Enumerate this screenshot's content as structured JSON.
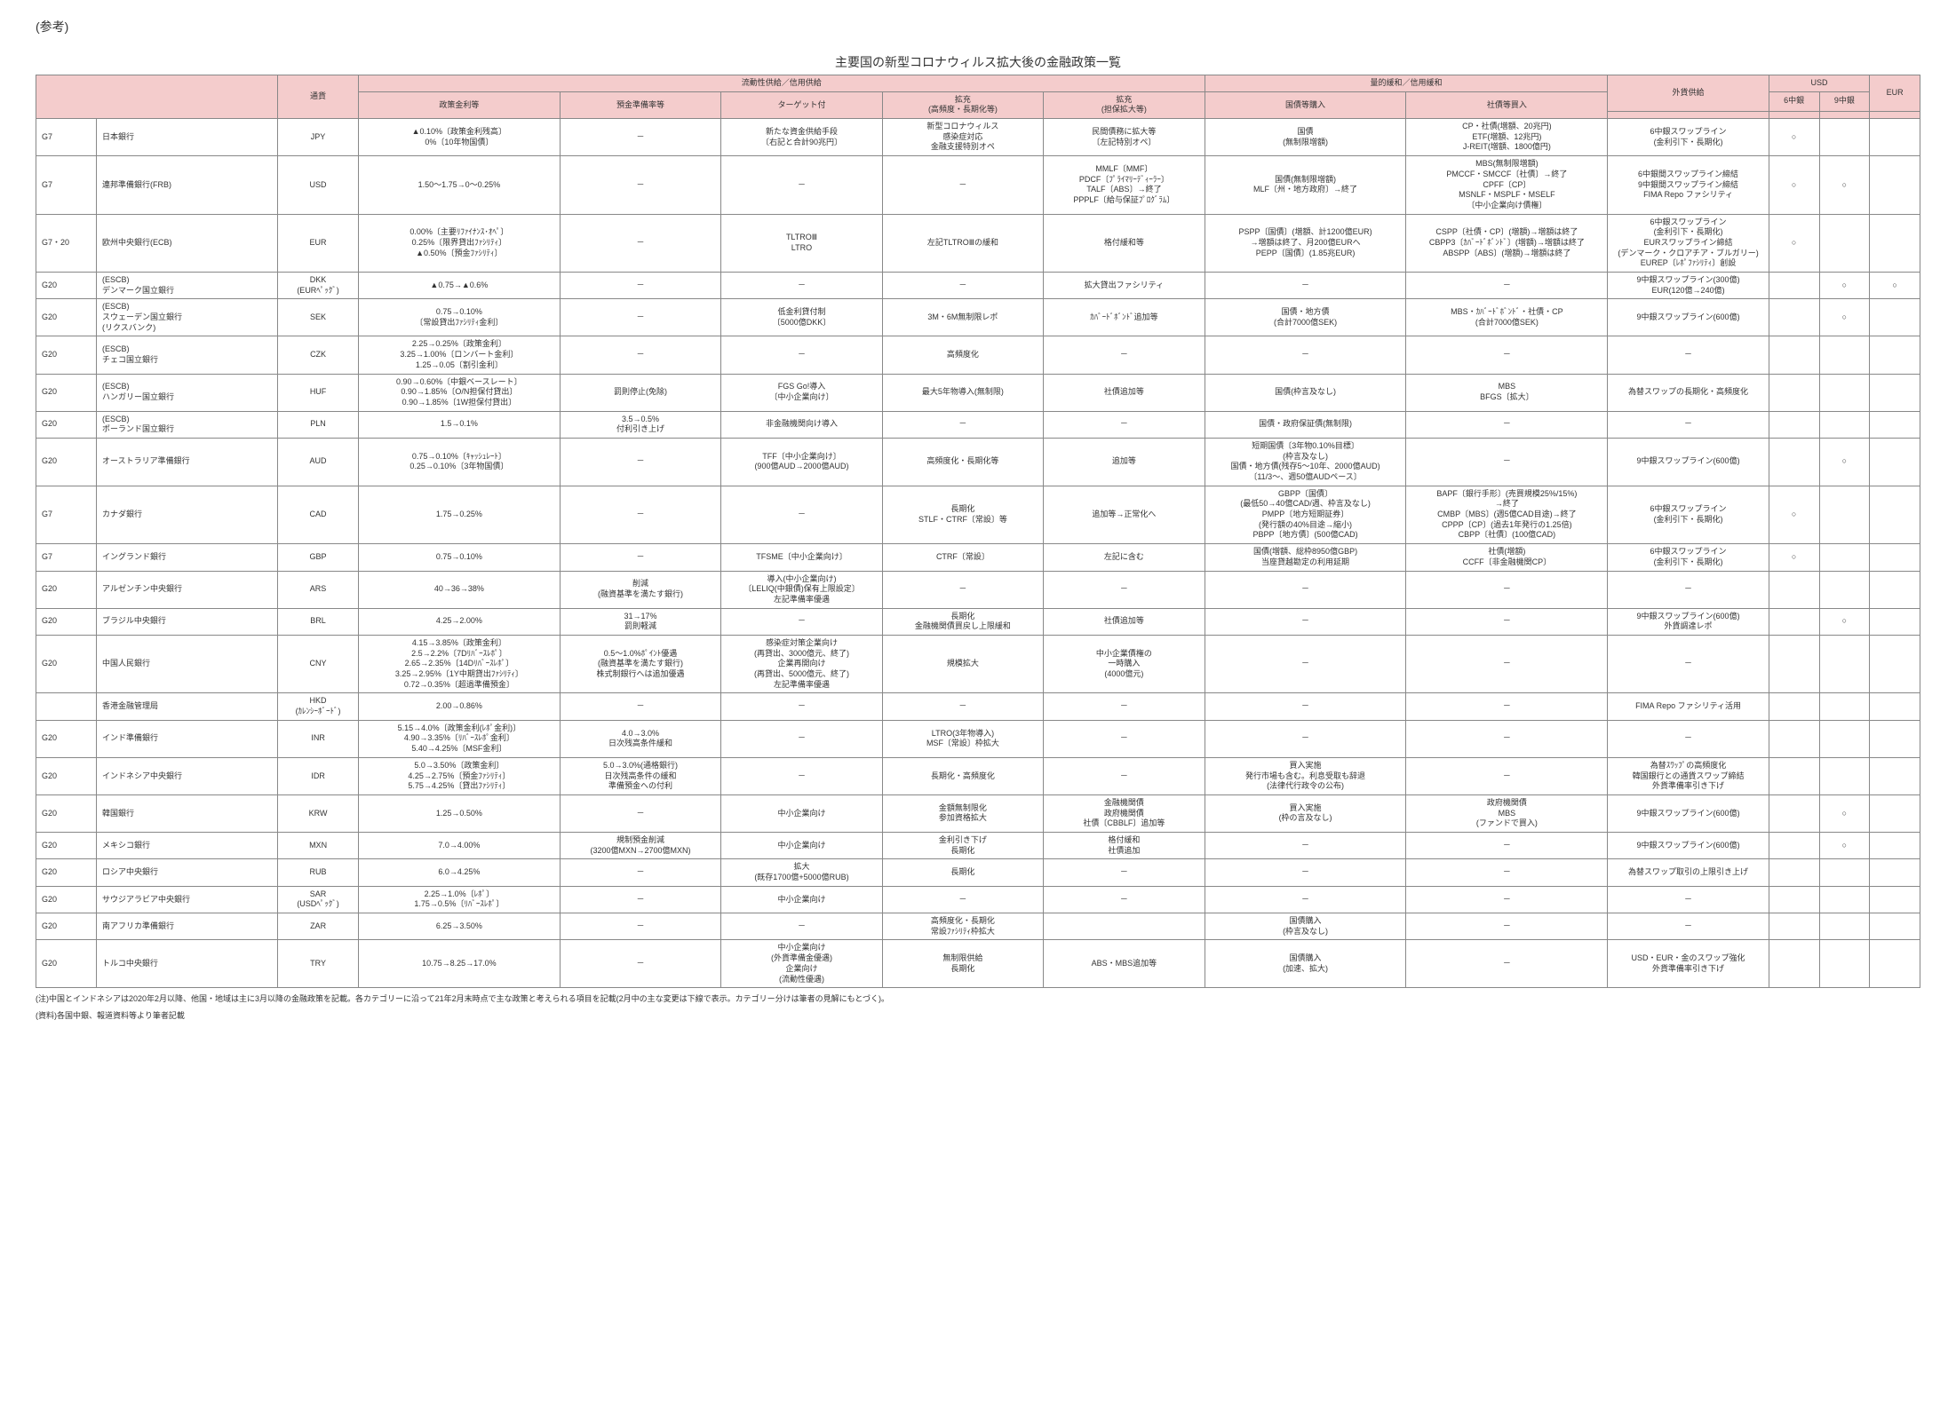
{
  "ref": "(参考)",
  "title": "主要国の新型コロナウィルス拡大後の金融政策一覧",
  "headers": {
    "liquidity": "流動性供給／信用供給",
    "qe": "量的緩和／信用緩和",
    "fx": "外貨供給",
    "ccy": "通貨",
    "rate": "政策金利等",
    "reserve": "預金準備率等",
    "target": "ターゲット付",
    "ext1": "拡充\n(高頻度・長期化等)",
    "ext2": "拡充\n(担保拡大等)",
    "gov": "国債等購入",
    "corp": "社債等買入",
    "usd": "USD",
    "eur": "EUR",
    "usd_6": "6中銀",
    "usd_9": "9中銀"
  },
  "rows": [
    {
      "g": "G7",
      "bank": "日本銀行",
      "ccy": "JPY",
      "rate": "▲0.10%〔政策金利残高〕\n0%〔10年物国債〕",
      "reserve": "－",
      "target": "新たな資金供給手段\n〔右記と合計90兆円〕",
      "ext1": "新型コロナウィルス\n感染症対応\n金融支援特別オペ",
      "ext2": "民間債務に拡大等\n〔左記特別オペ〕",
      "gov": "国債\n(無制限増額)",
      "corp": "CP・社債(増額、20兆円)\nETF(増額、12兆円)\nJ-REIT(増額、1800億円)",
      "fx": "6中銀スワップライン\n(金利引下・長期化)",
      "u6": "○",
      "u9": "",
      "eur": ""
    },
    {
      "g": "G7",
      "bank": "連邦準備銀行(FRB)",
      "ccy": "USD",
      "rate": "1.50～1.75→0～0.25%",
      "reserve": "－",
      "target": "－",
      "ext1": "－",
      "ext2": "MMLF〔MMF〕\nPDCF〔ﾌﾟﾗｲﾏﾘｰﾃﾞｨｰﾗｰ〕\nTALF〔ABS〕→終了\nPPPLF〔給与保証ﾌﾟﾛｸﾞﾗﾑ〕",
      "gov": "国債(無制限増額)\nMLF〔州・地方政府〕→終了",
      "corp": "MBS(無制限増額)\nPMCCF・SMCCF〔社債〕→終了\nCPFF〔CP〕\nMSNLF・MSPLF・MSELF\n〔中小企業向け債権〕",
      "fx": "6中銀間スワップライン締結\n9中銀間スワップライン締結\nFIMA Repo ファシリティ",
      "u6": "○",
      "u9": "○",
      "eur": ""
    },
    {
      "g": "G7・20",
      "bank": "欧州中央銀行(ECB)",
      "ccy": "EUR",
      "rate": "0.00%〔主要ﾘﾌｧｲﾅﾝｽ･ｵﾍﾟ〕\n0.25%〔限界貸出ﾌｧｼﾘﾃｨ〕\n▲0.50%〔預金ﾌｧｼﾘﾃｨ〕",
      "reserve": "－",
      "target": "TLTROⅢ\nLTRO",
      "ext1": "左記TLTROⅢの緩和",
      "ext2": "格付緩和等",
      "gov": "PSPP〔国債〕(増額、計1200億EUR)\n→増額は終了、月200億EURへ\nPEPP〔国債〕(1.85兆EUR)",
      "corp": "CSPP〔社債・CP〕(増額)→増額は終了\nCBPP3〔ｶﾊﾞｰﾄﾞﾎﾞﾝﾄﾞ〕(増額)→増額は終了\nABSPP〔ABS〕(増額)→増額は終了",
      "fx": "6中銀スワップライン\n(金利引下・長期化)\nEURスワップライン締結\n(デンマーク・クロアチア・ブルガリー)\nEUREP〔ﾚﾎﾟﾌｧｼﾘﾃｨ〕創設",
      "u6": "○",
      "u9": "",
      "eur": ""
    },
    {
      "g": "G20",
      "bank": "(ESCB)\nデンマーク国立銀行",
      "ccy": "DKK\n(EURﾍﾟｯｸﾞ)",
      "rate": "▲0.75→▲0.6%",
      "reserve": "－",
      "target": "－",
      "ext1": "－",
      "ext2": "拡大貸出ファシリティ",
      "gov": "－",
      "corp": "－",
      "fx": "9中銀スワップライン(300億)\nEUR(120億→240億)",
      "u6": "",
      "u9": "○",
      "eur": "○"
    },
    {
      "g": "G20",
      "bank": "(ESCB)\nスウェーデン国立銀行\n(リクスバンク)",
      "ccy": "SEK",
      "rate": "0.75→0.10%\n〔常設貸出ﾌｧｼﾘﾃｨ金利〕",
      "reserve": "－",
      "target": "低金利貸付制\n〔5000億DKK〕",
      "ext1": "3M・6M無制限レポ",
      "ext2": "ｶﾊﾞｰﾄﾞﾎﾞﾝﾄﾞ追加等",
      "gov": "国債・地方債\n(合計7000億SEK)",
      "corp": "MBS・ｶﾊﾞｰﾄﾞﾎﾞﾝﾄﾞ・社債・CP\n(合計7000億SEK)",
      "fx": "9中銀スワップライン(600億)",
      "u6": "",
      "u9": "○",
      "eur": ""
    },
    {
      "g": "G20",
      "bank": "(ESCB)\nチェコ国立銀行",
      "ccy": "CZK",
      "rate": "2.25→0.25%〔政策金利〕\n3.25→1.00%〔ロンバート金利〕\n1.25→0.05〔割引金利〕",
      "reserve": "－",
      "target": "－",
      "ext1": "高頻度化",
      "ext2": "－",
      "gov": "－",
      "corp": "－",
      "fx": "－",
      "u6": "",
      "u9": "",
      "eur": ""
    },
    {
      "g": "G20",
      "bank": "(ESCB)\nハンガリー国立銀行",
      "ccy": "HUF",
      "rate": "0.90→0.60%〔中銀ベースレート〕\n0.90→1.85%〔O/N担保付貸出〕\n0.90→1.85%〔1W担保付貸出〕",
      "reserve": "罰則停止(免除)",
      "target": "FGS Go!導入\n〔中小企業向け〕",
      "ext1": "最大5年物導入(無制限)",
      "ext2": "社債追加等",
      "gov": "国債(枠言及なし)",
      "corp": "MBS\nBFGS〔拡大〕",
      "fx": "為替スワップの長期化・高頻度化",
      "u6": "",
      "u9": "",
      "eur": ""
    },
    {
      "g": "G20",
      "bank": "(ESCB)\nポーランド国立銀行",
      "ccy": "PLN",
      "rate": "1.5→0.1%",
      "reserve": "3.5→0.5%\n付利引き上げ",
      "target": "非金融機関向け導入",
      "ext1": "－",
      "ext2": "－",
      "gov": "国債・政府保証債(無制限)",
      "corp": "－",
      "fx": "－",
      "u6": "",
      "u9": "",
      "eur": ""
    },
    {
      "g": "G20",
      "bank": "オーストラリア準備銀行",
      "ccy": "AUD",
      "rate": "0.75→0.10%〔ｷｬｯｼｭﾚｰﾄ〕\n0.25→0.10%〔3年物国債〕",
      "reserve": "－",
      "target": "TFF〔中小企業向け〕\n(900億AUD→2000億AUD)",
      "ext1": "高頻度化・長期化等",
      "ext2": "追加等",
      "gov": "短期国債〔3年物0.10%目標〕\n(枠言及なし)\n国債・地方債(残存5～10年、2000億AUD)\n〔11/3～、週50億AUDペース〕",
      "corp": "－",
      "fx": "9中銀スワップライン(600億)",
      "u6": "",
      "u9": "○",
      "eur": ""
    },
    {
      "g": "G7",
      "bank": "カナダ銀行",
      "ccy": "CAD",
      "rate": "1.75→0.25%",
      "reserve": "－",
      "target": "－",
      "ext1": "長期化\nSTLF・CTRF〔常設〕等",
      "ext2": "追加等→正常化へ",
      "gov": "GBPP〔国債〕\n(最低50→40億CAD/週、枠言及なし)\nPMPP〔地方短期証券〕\n(発行額の40%目途→縮小)\nPBPP〔地方債〕(500億CAD)",
      "corp": "BAPF〔銀行手形〕(売買規模25%/15%)\n→終了\nCMBP〔MBS〕(週5億CAD目途)→終了\nCPPP〔CP〕(過去1年発行の1.25倍)\nCBPP〔社債〕(100億CAD)",
      "fx": "6中銀スワップライン\n(金利引下・長期化)",
      "u6": "○",
      "u9": "",
      "eur": ""
    },
    {
      "g": "G7",
      "bank": "イングランド銀行",
      "ccy": "GBP",
      "rate": "0.75→0.10%",
      "reserve": "－",
      "target": "TFSME〔中小企業向け〕",
      "ext1": "CTRF〔常設〕",
      "ext2": "左記に含む",
      "gov": "国債(増額、総枠8950億GBP)\n当座貸越勘定の利用延期",
      "corp": "社債(増額)\nCCFF〔非金融機関CP〕",
      "fx": "6中銀スワップライン\n(金利引下・長期化)",
      "u6": "○",
      "u9": "",
      "eur": ""
    },
    {
      "g": "G20",
      "bank": "アルゼンチン中央銀行",
      "ccy": "ARS",
      "rate": "40→36→38%",
      "reserve": "削減\n(融資基準を満たす銀行)",
      "target": "導入(中小企業向け)\n〔LELIQ(中銀債)保有上限設定〕\n左記準備率優遇",
      "ext1": "－",
      "ext2": "－",
      "gov": "－",
      "corp": "－",
      "fx": "－",
      "u6": "",
      "u9": "",
      "eur": ""
    },
    {
      "g": "G20",
      "bank": "ブラジル中央銀行",
      "ccy": "BRL",
      "rate": "4.25→2.00%",
      "reserve": "31→17%\n罰則軽減",
      "target": "－",
      "ext1": "長期化\n金融機関債買戻し上限緩和",
      "ext2": "社債追加等",
      "gov": "－",
      "corp": "－",
      "fx": "9中銀スワップライン(600億)\n外貨調達レポ",
      "u6": "",
      "u9": "○",
      "eur": ""
    },
    {
      "g": "G20",
      "bank": "中国人民銀行",
      "ccy": "CNY",
      "rate": "4.15→3.85%〔政策金利〕\n2.5→2.2%〔7Dﾘﾊﾞｰｽﾚﾎﾟ〕\n2.65→2.35%〔14Dﾘﾊﾞｰｽﾚﾎﾟ〕\n3.25→2.95%〔1Y中期貸出ﾌｧｼﾘﾃｨ〕\n0.72→0.35%〔超過準備預金〕",
      "reserve": "0.5～1.0%ﾎﾟｲﾝﾄ優遇\n(融資基準を満たす銀行)\n株式制銀行へは追加優遇",
      "target": "感染症対策企業向け\n(再貸出、3000億元、終了)\n企業再開向け\n(再貸出、5000億元、終了)\n左記準備率優遇",
      "ext1": "規模拡大",
      "ext2": "中小企業債権の\n一時購入\n(4000億元)",
      "gov": "－",
      "corp": "－",
      "fx": "－",
      "u6": "",
      "u9": "",
      "eur": ""
    },
    {
      "g": "",
      "bank": "香港金融管理局",
      "ccy": "HKD\n(ｶﾚﾝｼｰﾎﾞｰﾄﾞ)",
      "rate": "2.00→0.86%",
      "reserve": "－",
      "target": "－",
      "ext1": "－",
      "ext2": "－",
      "gov": "－",
      "corp": "－",
      "fx": "FIMA Repo ファシリティ活用",
      "u6": "",
      "u9": "",
      "eur": ""
    },
    {
      "g": "G20",
      "bank": "インド準備銀行",
      "ccy": "INR",
      "rate": "5.15→4.0%〔政策金利(ﾚﾎﾟ金利)〕\n4.90→3.35%〔ﾘﾊﾞｰｽﾚﾎﾟ金利〕\n5.40→4.25%〔MSF金利〕",
      "reserve": "4.0→3.0%\n日次残高条件緩和",
      "target": "－",
      "ext1": "LTRO(3年物導入)\nMSF〔常設〕枠拡大",
      "ext2": "－",
      "gov": "－",
      "corp": "－",
      "fx": "－",
      "u6": "",
      "u9": "",
      "eur": ""
    },
    {
      "g": "G20",
      "bank": "インドネシア中央銀行",
      "ccy": "IDR",
      "rate": "5.0→3.50%〔政策金利〕\n4.25→2.75%〔預金ﾌｧｼﾘﾃｨ〕\n5.75→4.25%〔貸出ﾌｧｼﾘﾃｨ〕",
      "reserve": "5.0→3.0%(通格銀行)\n日次残高条件の緩和\n準備預金への付利",
      "target": "－",
      "ext1": "長期化・高頻度化",
      "ext2": "－",
      "gov": "買入実施\n発行市場も含む。利息受取も辞退\n(法律代行政令の公布)",
      "corp": "－",
      "fx": "為替ｽﾜｯﾌﾟの高頻度化\n韓国銀行との通貨スワップ締結\n外貨準備率引き下げ",
      "u6": "",
      "u9": "",
      "eur": ""
    },
    {
      "g": "G20",
      "bank": "韓国銀行",
      "ccy": "KRW",
      "rate": "1.25→0.50%",
      "reserve": "－",
      "target": "中小企業向け",
      "ext1": "金額無制限化\n参加資格拡大",
      "ext2": "金融機関債\n政府機関債\n社債〔CBBLF〕追加等",
      "gov": "買入実施\n(枠の言及なし)",
      "corp": "政府機関債\nMBS\n(ファンドで買入)",
      "fx": "9中銀スワップライン(600億)",
      "u6": "",
      "u9": "○",
      "eur": ""
    },
    {
      "g": "G20",
      "bank": "メキシコ銀行",
      "ccy": "MXN",
      "rate": "7.0→4.00%",
      "reserve": "規制預金削減\n(3200億MXN→2700億MXN)",
      "target": "中小企業向け",
      "ext1": "金利引き下げ\n長期化",
      "ext2": "格付緩和\n社債追加",
      "gov": "－",
      "corp": "－",
      "fx": "9中銀スワップライン(600億)",
      "u6": "",
      "u9": "○",
      "eur": ""
    },
    {
      "g": "G20",
      "bank": "ロシア中央銀行",
      "ccy": "RUB",
      "rate": "6.0→4.25%",
      "reserve": "－",
      "target": "拡大\n(既存1700億+5000億RUB)",
      "ext1": "長期化",
      "ext2": "－",
      "gov": "－",
      "corp": "－",
      "fx": "為替スワップ取引の上限引き上げ",
      "u6": "",
      "u9": "",
      "eur": ""
    },
    {
      "g": "G20",
      "bank": "サウジアラビア中央銀行",
      "ccy": "SAR\n(USDﾍﾟｯｸﾞ)",
      "rate": "2.25→1.0%〔ﾚﾎﾟ〕\n1.75→0.5%〔ﾘﾊﾞｰｽﾚﾎﾟ〕",
      "reserve": "－",
      "target": "中小企業向け",
      "ext1": "－",
      "ext2": "－",
      "gov": "－",
      "corp": "－",
      "fx": "－",
      "u6": "",
      "u9": "",
      "eur": ""
    },
    {
      "g": "G20",
      "bank": "南アフリカ準備銀行",
      "ccy": "ZAR",
      "rate": "6.25→3.50%",
      "reserve": "－",
      "target": "－",
      "ext1": "高頻度化・長期化\n常設ﾌｧｼﾘﾃｨ枠拡大",
      "ext2": "",
      "gov": "国債購入\n(枠言及なし)",
      "corp": "－",
      "fx": "－",
      "u6": "",
      "u9": "",
      "eur": ""
    },
    {
      "g": "G20",
      "bank": "トルコ中央銀行",
      "ccy": "TRY",
      "rate": "10.75→8.25→17.0%",
      "reserve": "－",
      "target": "中小企業向け\n(外貨準備金優遇)\n企業向け\n(流動性優遇)",
      "ext1": "無制限供給\n長期化",
      "ext2": "ABS・MBS追加等",
      "gov": "国債購入\n(加速、拡大)",
      "corp": "－",
      "fx": "USD・EUR・金のスワップ強化\n外貨準備率引き下げ",
      "u6": "",
      "u9": "",
      "eur": ""
    }
  ],
  "notes": [
    "(注)中国とインドネシアは2020年2月以降、他国・地域は主に3月以降の金融政策を記載。各カテゴリーに沿って21年2月末時点で主な政策と考えられる項目を記載(2月中の主な変更は下線で表示。カテゴリー分けは筆者の見解にもとづく)。",
    "(資料)各国中銀、報道資料等より筆者記載"
  ]
}
